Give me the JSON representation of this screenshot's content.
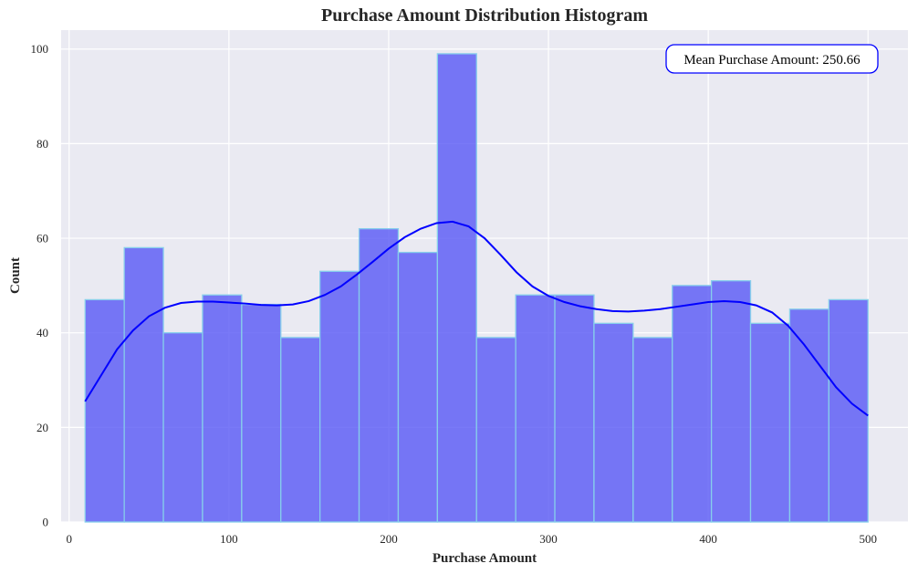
{
  "chart_data": {
    "type": "bar",
    "title": "Purchase Amount Distribution Histogram",
    "xlabel": "Purchase Amount",
    "ylabel": "Count",
    "xlim": [
      -5,
      525
    ],
    "ylim": [
      0,
      104
    ],
    "xticks": [
      "0",
      "100",
      "200",
      "300",
      "400",
      "500"
    ],
    "yticks": [
      "0",
      "20",
      "40",
      "60",
      "80",
      "100"
    ],
    "bin_edges": [
      10,
      34.5,
      59,
      83.5,
      108,
      132.5,
      157,
      181.5,
      206,
      230.5,
      255,
      279.5,
      304,
      328.5,
      353,
      377.5,
      402,
      426.5,
      451,
      475.5,
      500
    ],
    "counts": [
      47,
      58,
      40,
      48,
      46,
      39,
      53,
      62,
      57,
      99,
      39,
      48,
      48,
      42,
      39,
      50,
      51,
      42,
      45,
      47
    ],
    "kde": {
      "x": [
        10,
        20,
        30,
        40,
        50,
        60,
        70,
        80,
        90,
        100,
        110,
        120,
        130,
        140,
        150,
        160,
        170,
        180,
        190,
        200,
        210,
        220,
        230,
        240,
        250,
        260,
        270,
        280,
        290,
        300,
        310,
        320,
        330,
        340,
        350,
        360,
        370,
        380,
        390,
        400,
        410,
        420,
        430,
        440,
        450,
        460,
        470,
        480,
        490,
        500
      ],
      "y": [
        25.5,
        31,
        36.5,
        40.5,
        43.5,
        45.3,
        46.3,
        46.6,
        46.6,
        46.4,
        46.2,
        45.9,
        45.8,
        46.0,
        46.7,
        48.0,
        49.8,
        52.3,
        55.0,
        57.8,
        60.2,
        62.0,
        63.2,
        63.5,
        62.5,
        60.0,
        56.5,
        52.8,
        49.8,
        47.8,
        46.5,
        45.6,
        45.0,
        44.6,
        44.5,
        44.7,
        45.0,
        45.5,
        46.0,
        46.5,
        46.7,
        46.5,
        45.8,
        44.3,
        41.5,
        37.5,
        33.0,
        28.5,
        25.0,
        22.5
      ]
    },
    "annotation": "Mean Purchase Amount: 250.66",
    "grid": true,
    "colors": {
      "background": "#eaeaf2",
      "grid": "#ffffff",
      "bar_fill": "#5b5cf5",
      "bar_edge": "#87ceeb",
      "kde_line": "#0000ff",
      "annotation_border": "#0000ff"
    }
  }
}
